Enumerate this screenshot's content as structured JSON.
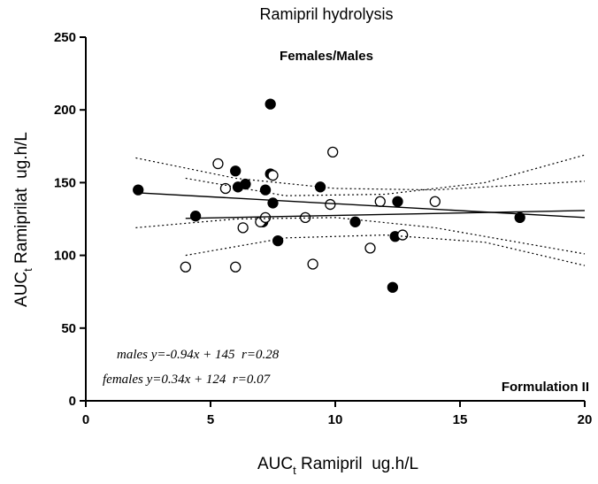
{
  "chart_data": {
    "type": "scatter",
    "title": "Ramipril hydrolysis",
    "subtitle": "Females/Males",
    "annotations": [
      "males y=-0.94x + 145  r=0.28",
      "females y=0.34x + 124  r=0.07",
      "Formulation II"
    ],
    "xlabel": {
      "main": "AUC",
      "sub": "t",
      "rest": " Ramipril  ug.h/L"
    },
    "ylabel": {
      "main": "AUC",
      "sub": "t",
      "rest": " Ramiprilat  ug.h/L"
    },
    "xlim": [
      0,
      20
    ],
    "xticks": [
      0,
      5,
      10,
      15,
      20
    ],
    "ylim": [
      0,
      250
    ],
    "yticks": [
      0,
      50,
      100,
      150,
      200,
      250
    ],
    "grid": false,
    "series": [
      {
        "marker": "filled",
        "color": "#000000",
        "x": [
          2.1,
          4.4,
          6.0,
          6.1,
          6.4,
          7.1,
          7.2,
          7.4,
          7.4,
          7.5,
          7.7,
          9.4,
          10.8,
          12.3,
          12.4,
          12.5,
          17.4
        ],
        "values": [
          145,
          127,
          158,
          147,
          149,
          123,
          145,
          156,
          204,
          136,
          110,
          147,
          123,
          78,
          113,
          137,
          126
        ]
      },
      {
        "marker": "open",
        "color": "#000000",
        "x": [
          4.0,
          5.3,
          5.6,
          6.0,
          6.3,
          7.0,
          7.2,
          7.5,
          8.8,
          9.1,
          9.8,
          9.9,
          11.4,
          11.8,
          12.7,
          14.0
        ],
        "values": [
          92,
          163,
          146,
          92,
          119,
          123,
          126,
          155,
          126,
          94,
          135,
          171,
          105,
          137,
          114,
          137
        ]
      },
      {
        "style": "solid",
        "color": "#000000",
        "x": [
          2.1,
          20
        ],
        "values": [
          143,
          126
        ]
      },
      {
        "style": "solid",
        "color": "#000000",
        "x": [
          4,
          20
        ],
        "values": [
          125.4,
          130.8
        ]
      },
      {
        "style": "dotted",
        "color": "#000000",
        "x": [
          2,
          6,
          10,
          14,
          20
        ],
        "values": [
          167,
          153,
          146,
          145,
          151
        ]
      },
      {
        "style": "dotted",
        "color": "#000000",
        "x": [
          2,
          6,
          10,
          14,
          20
        ],
        "values": [
          119,
          125,
          126,
          119,
          101
        ]
      },
      {
        "style": "dotted",
        "color": "#000000",
        "x": [
          4,
          8,
          12,
          16,
          20
        ],
        "values": [
          153,
          141,
          142,
          150,
          169
        ]
      },
      {
        "style": "dotted",
        "color": "#000000",
        "x": [
          4,
          8,
          12,
          16,
          20
        ],
        "values": [
          100,
          112,
          114,
          109,
          93
        ]
      }
    ]
  }
}
